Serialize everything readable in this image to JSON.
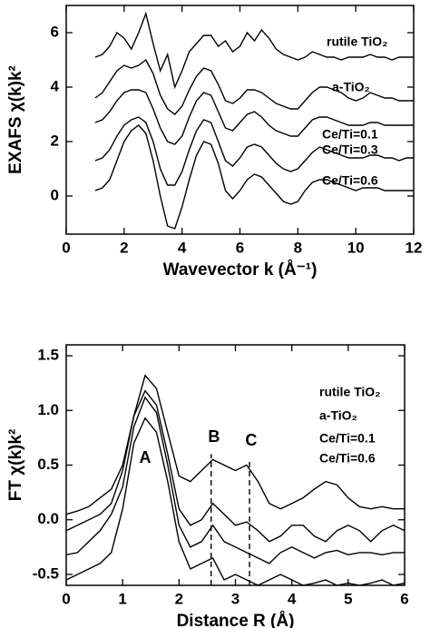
{
  "chart_data": [
    {
      "type": "line",
      "y_label": "EXAFS χ(k)k²",
      "x_label": "Wavevector k (Å⁻¹)",
      "xlim": [
        0,
        12
      ],
      "xticks": [
        0,
        2,
        4,
        6,
        8,
        10,
        12
      ],
      "ylim": [
        -1.4,
        7.0
      ],
      "yticks": [
        0,
        2,
        4,
        6
      ],
      "x": [
        1.0,
        1.25,
        1.5,
        1.75,
        2.0,
        2.25,
        2.5,
        2.75,
        3.0,
        3.25,
        3.5,
        3.75,
        4.0,
        4.25,
        4.5,
        4.75,
        5.0,
        5.25,
        5.5,
        5.75,
        6.0,
        6.25,
        6.5,
        6.75,
        7.0,
        7.25,
        7.5,
        7.75,
        8.0,
        8.25,
        8.5,
        8.75,
        9.0,
        9.25,
        9.5,
        9.75,
        10.0,
        10.25,
        10.5,
        10.75,
        11.0,
        11.25,
        11.5,
        11.75,
        12.0
      ],
      "series": [
        {
          "name": "rutile TiO₂",
          "color": "#000000",
          "values": [
            5.1,
            5.2,
            5.5,
            6.0,
            5.8,
            5.4,
            6.0,
            6.7,
            5.6,
            4.6,
            5.2,
            4.0,
            4.6,
            5.3,
            5.6,
            5.9,
            5.9,
            5.5,
            5.7,
            5.3,
            5.5,
            6.0,
            5.7,
            6.1,
            5.8,
            5.4,
            5.2,
            5.1,
            5.0,
            5.1,
            5.3,
            5.2,
            5.1,
            5.1,
            5.0,
            5.1,
            5.1,
            5.1,
            5.2,
            5.1,
            5.1,
            5.0,
            5.1,
            5.1,
            5.1
          ]
        },
        {
          "name": "a-TiO₂",
          "color": "#000000",
          "values": [
            3.6,
            3.8,
            4.2,
            4.6,
            4.8,
            4.7,
            4.8,
            5.0,
            4.5,
            3.7,
            3.2,
            3.0,
            3.3,
            3.9,
            4.4,
            4.7,
            4.6,
            4.1,
            3.5,
            3.4,
            3.6,
            3.9,
            3.9,
            3.8,
            3.6,
            3.4,
            3.3,
            3.2,
            3.2,
            3.5,
            3.8,
            4.0,
            4.0,
            3.9,
            3.8,
            3.6,
            3.5,
            3.6,
            3.8,
            3.7,
            3.6,
            3.6,
            3.5,
            3.5,
            3.5
          ]
        },
        {
          "name": "Ce/Ti=0.1",
          "color": "#000000",
          "values": [
            2.7,
            2.8,
            3.1,
            3.5,
            3.8,
            3.9,
            3.9,
            3.8,
            3.2,
            2.5,
            2.0,
            1.9,
            2.2,
            2.9,
            3.5,
            3.8,
            3.7,
            3.1,
            2.5,
            2.4,
            2.7,
            3.0,
            3.1,
            2.9,
            2.6,
            2.4,
            2.3,
            2.2,
            2.2,
            2.5,
            2.8,
            2.9,
            2.9,
            2.8,
            2.7,
            2.6,
            2.6,
            2.6,
            2.7,
            2.7,
            2.6,
            2.6,
            2.6,
            2.6,
            2.6
          ]
        },
        {
          "name": "Ce/Ti=0.3",
          "color": "#000000",
          "values": [
            1.3,
            1.4,
            1.7,
            2.2,
            2.6,
            2.8,
            2.9,
            2.7,
            2.0,
            1.0,
            0.4,
            0.4,
            0.9,
            1.7,
            2.4,
            2.8,
            2.7,
            2.0,
            1.3,
            1.1,
            1.4,
            1.8,
            1.9,
            1.8,
            1.5,
            1.2,
            1.0,
            0.9,
            1.0,
            1.3,
            1.6,
            1.8,
            1.7,
            1.6,
            1.5,
            1.4,
            1.4,
            1.4,
            1.5,
            1.5,
            1.4,
            1.4,
            1.3,
            1.4,
            1.4
          ]
        },
        {
          "name": "Ce/Ti=0.6",
          "color": "#000000",
          "values": [
            0.2,
            0.3,
            0.6,
            1.3,
            2.0,
            2.4,
            2.6,
            2.3,
            1.3,
            0.0,
            -1.1,
            -1.2,
            -0.4,
            0.6,
            1.5,
            2.0,
            1.9,
            1.2,
            0.2,
            -0.1,
            0.2,
            0.6,
            0.8,
            0.7,
            0.4,
            0.1,
            -0.2,
            -0.3,
            -0.2,
            0.2,
            0.5,
            0.6,
            0.6,
            0.5,
            0.4,
            0.3,
            0.2,
            0.3,
            0.3,
            0.3,
            0.2,
            0.2,
            0.2,
            0.2,
            0.2
          ]
        }
      ]
    },
    {
      "type": "line",
      "y_label": "FT χ(k)k²",
      "x_label": "Distance R (Å)",
      "xlim": [
        0,
        6
      ],
      "xticks": [
        0,
        1,
        2,
        3,
        4,
        5,
        6
      ],
      "ylim": [
        -0.6,
        1.6
      ],
      "yticks": [
        -0.5,
        {
          "value": 0,
          "label": "0.0"
        },
        0.5,
        {
          "value": 1,
          "label": "1.0"
        },
        1.5
      ],
      "x": [
        0,
        0.2,
        0.4,
        0.6,
        0.8,
        1.0,
        1.2,
        1.4,
        1.6,
        1.8,
        2.0,
        2.2,
        2.4,
        2.6,
        2.8,
        3.0,
        3.2,
        3.4,
        3.6,
        3.8,
        4.0,
        4.2,
        4.4,
        4.6,
        4.8,
        5.0,
        5.2,
        5.4,
        5.6,
        5.8,
        6.0
      ],
      "series": [
        {
          "name": "rutile TiO₂",
          "color": "#000000",
          "values": [
            0.05,
            0.08,
            0.12,
            0.2,
            0.28,
            0.5,
            0.95,
            1.32,
            1.2,
            0.8,
            0.4,
            0.35,
            0.45,
            0.55,
            0.5,
            0.45,
            0.5,
            0.35,
            0.15,
            0.1,
            0.15,
            0.2,
            0.28,
            0.35,
            0.32,
            0.2,
            0.12,
            0.1,
            0.12,
            0.1,
            0.1
          ]
        },
        {
          "name": "a-TiO₂",
          "color": "#000000",
          "values": [
            -0.1,
            -0.05,
            0.0,
            0.05,
            0.15,
            0.45,
            0.95,
            1.18,
            1.05,
            0.6,
            0.1,
            -0.05,
            0.0,
            0.15,
            0.05,
            -0.05,
            -0.02,
            -0.1,
            -0.2,
            -0.15,
            -0.05,
            -0.05,
            -0.15,
            -0.2,
            -0.1,
            -0.05,
            -0.1,
            -0.2,
            -0.1,
            -0.05,
            -0.1
          ]
        },
        {
          "name": "Ce/Ti=0.1",
          "color": "#000000",
          "values": [
            -0.32,
            -0.3,
            -0.2,
            -0.1,
            0.05,
            0.3,
            0.85,
            1.12,
            0.98,
            0.5,
            -0.05,
            -0.25,
            -0.2,
            -0.05,
            -0.2,
            -0.25,
            -0.3,
            -0.35,
            -0.4,
            -0.3,
            -0.25,
            -0.3,
            -0.35,
            -0.3,
            -0.28,
            -0.32,
            -0.3,
            -0.3,
            -0.32,
            -0.3,
            -0.3
          ]
        },
        {
          "name": "Ce/Ti=0.6",
          "color": "#000000",
          "values": [
            -0.55,
            -0.5,
            -0.45,
            -0.4,
            -0.3,
            0.1,
            0.7,
            0.93,
            0.8,
            0.35,
            -0.2,
            -0.45,
            -0.4,
            -0.35,
            -0.55,
            -0.5,
            -0.55,
            -0.6,
            -0.55,
            -0.5,
            -0.55,
            -0.6,
            -0.58,
            -0.55,
            -0.6,
            -0.58,
            -0.6,
            -0.58,
            -0.55,
            -0.6,
            -0.58
          ]
        }
      ],
      "annotations": [
        {
          "text": "A",
          "x": 1.4,
          "y": 0.56
        },
        {
          "text": "B",
          "x": 2.62,
          "y": 0.75
        },
        {
          "text": "C",
          "x": 3.28,
          "y": 0.72
        }
      ],
      "dashed_lines": [
        {
          "x": 2.57,
          "y": [
            -0.6,
            0.6
          ]
        },
        {
          "x": 3.25,
          "y": [
            -0.6,
            0.55
          ]
        }
      ]
    }
  ]
}
